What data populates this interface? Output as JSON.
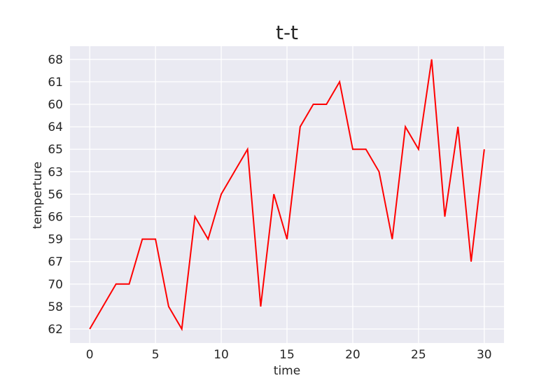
{
  "chart_data": {
    "type": "line",
    "title": "t-t",
    "xlabel": "time",
    "ylabel": "temperture",
    "xlim": [
      -1.5,
      31.5
    ],
    "x_ticks": [
      0,
      5,
      10,
      15,
      20,
      25,
      30
    ],
    "y_categories": [
      "62",
      "58",
      "70",
      "67",
      "59",
      "66",
      "56",
      "63",
      "65",
      "64",
      "60",
      "61",
      "68"
    ],
    "grid": true,
    "colors": {
      "background": "#eaeaf2",
      "grid": "#ffffff",
      "line": "#ff0000",
      "text": "#262626"
    },
    "series": [
      {
        "x": [
          0,
          1,
          2,
          3,
          4,
          5,
          6,
          7,
          8,
          9,
          10,
          11,
          12,
          13,
          14,
          15,
          16,
          17,
          18,
          19,
          20,
          21,
          22,
          23,
          24,
          25,
          26,
          27,
          28,
          29,
          30
        ],
        "values": [
          "62",
          "58",
          "70",
          "70",
          "59",
          "59",
          "58",
          "62",
          "66",
          "59",
          "56",
          "63",
          "65",
          "58",
          "56",
          "59",
          "64",
          "60",
          "60",
          "61",
          "65",
          "65",
          "63",
          "59",
          "64",
          "65",
          "68",
          "66",
          "64",
          "67",
          "65"
        ]
      }
    ]
  }
}
